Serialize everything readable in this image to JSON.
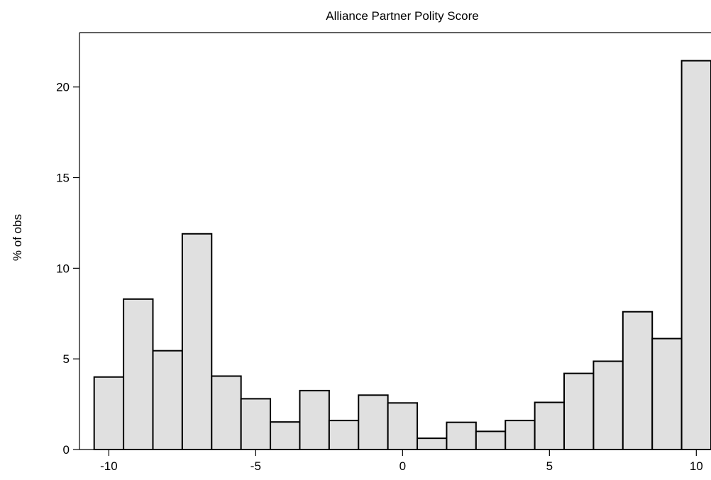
{
  "chart_data": {
    "type": "bar",
    "title": "Alliance Partner Polity Score",
    "xlabel": "",
    "ylabel": "% of obs",
    "xlim": [
      -11,
      10.5
    ],
    "ylim": [
      0,
      23
    ],
    "bin_width": 1,
    "x_ticks": [
      -10,
      -5,
      0,
      5,
      10
    ],
    "x_tick_labels": [
      "-10",
      "-5",
      "0",
      "5",
      "10"
    ],
    "y_ticks": [
      0,
      5,
      10,
      15,
      20
    ],
    "y_tick_labels": [
      "0",
      "5",
      "10",
      "15",
      "20"
    ],
    "grid": false,
    "bins": [
      {
        "x": -10,
        "value": 4.0
      },
      {
        "x": -9,
        "value": 8.3
      },
      {
        "x": -8,
        "value": 5.45
      },
      {
        "x": -7,
        "value": 11.9
      },
      {
        "x": -6,
        "value": 4.05
      },
      {
        "x": -5,
        "value": 2.8
      },
      {
        "x": -4,
        "value": 1.52
      },
      {
        "x": -3,
        "value": 3.25
      },
      {
        "x": -2,
        "value": 1.6
      },
      {
        "x": -1,
        "value": 3.0
      },
      {
        "x": 0,
        "value": 2.57
      },
      {
        "x": 1,
        "value": 0.62
      },
      {
        "x": 2,
        "value": 1.5
      },
      {
        "x": 3,
        "value": 1.0
      },
      {
        "x": 4,
        "value": 1.6
      },
      {
        "x": 5,
        "value": 2.6
      },
      {
        "x": 6,
        "value": 4.2
      },
      {
        "x": 7,
        "value": 4.87
      },
      {
        "x": 8,
        "value": 7.6
      },
      {
        "x": 9,
        "value": 6.12
      },
      {
        "x": 10,
        "value": 21.45
      }
    ]
  }
}
